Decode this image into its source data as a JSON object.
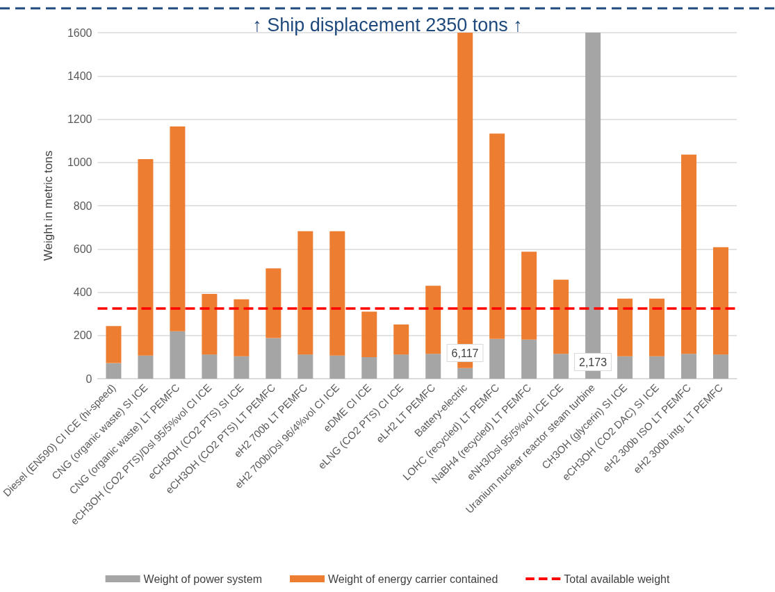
{
  "chart_data": {
    "type": "bar",
    "stacked": true,
    "ylabel": "Weight in metric tons",
    "categories": [
      "Diesel (EN590) CI ICE (hi-speed)",
      "CNG (organic waste) SI ICE",
      "CNG (organic waste) LT PEMFC",
      "eCH3OH (CO2 PTS)/Dsl 95/5%vol CI ICE",
      "eCH3OH (CO2 PTS) SI ICE",
      "eCH3OH (CO2 PTS) LT PEMFC",
      "eH2 700b LT PEMFC",
      "eH2 700b/Dsl 96/4%vol CI ICE",
      "eDME CI ICE",
      "eLNG (CO2 PTS) CI ICE",
      "eLH2 LT PEMFC",
      "Battery-electric",
      "LOHC (recycled) LT PEMFC",
      "NaBH4 (recycled) LT PEMFC",
      "eNH3/Dsl 95/5%vol ICE ICE",
      "Uranium nuclear reactor steam turbine",
      "CH3OH (glycerin) SI ICE",
      "eCH3OH (CO2 DAC) SI ICE",
      "eH2 300b ISO LT PEMFC",
      "eH2 300b intg. LT PEMFC"
    ],
    "series": [
      {
        "name": "Weight of power system",
        "color": "#a5a5a5",
        "values": [
          72,
          107,
          219,
          112,
          104,
          188,
          112,
          107,
          100,
          112,
          115,
          49,
          184,
          181,
          115,
          1600,
          104,
          104,
          115,
          112
        ]
      },
      {
        "name": "Weight of energy carrier contained",
        "color": "#ed7d31",
        "values": [
          171,
          908,
          947,
          280,
          263,
          322,
          570,
          575,
          210,
          139,
          315,
          1551,
          949,
          406,
          343,
          null,
          266,
          266,
          921,
          496
        ]
      }
    ],
    "ylim": [
      0,
      1600
    ],
    "yticks": [
      0,
      200,
      400,
      600,
      800,
      1000,
      1200,
      1400,
      1600
    ],
    "grid": "y",
    "legend": "bottom",
    "ref_lines": [
      {
        "axis": "y",
        "value": 325,
        "label": "Total available weight",
        "color": "#ff0000",
        "line_style": "dashed"
      }
    ],
    "annotations": [
      "↑ Ship displacement 2350 tons ↑",
      "6,117",
      "2,173"
    ]
  }
}
